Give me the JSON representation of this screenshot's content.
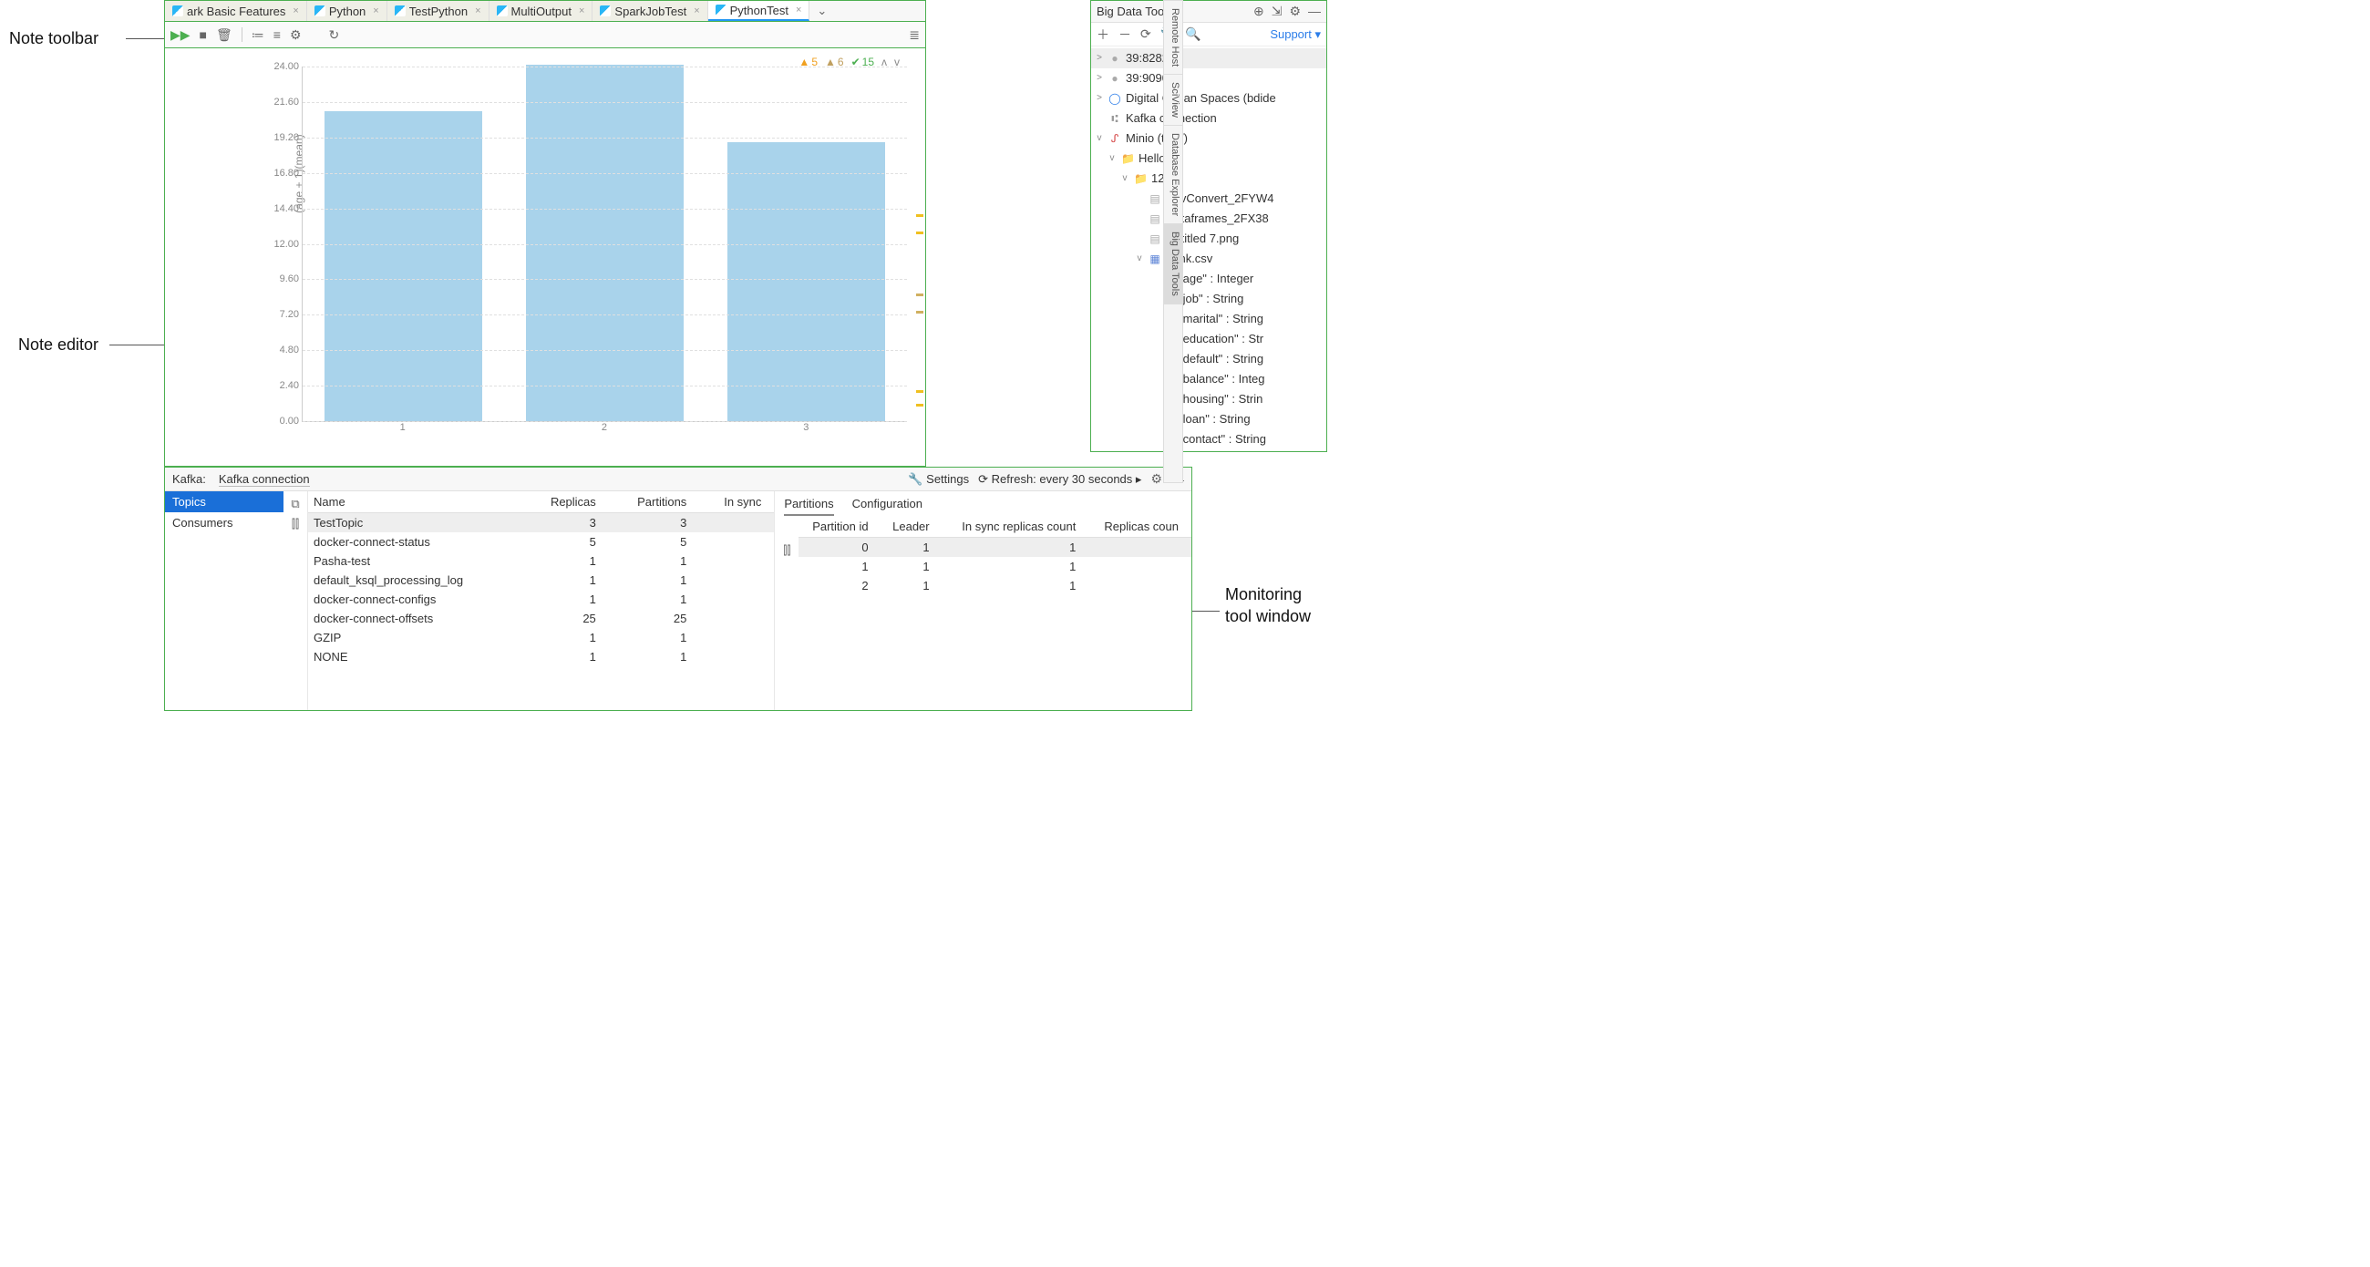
{
  "callouts": {
    "note_toolbar": "Note toolbar",
    "note_editor": "Note editor",
    "bdt1": "Big Data Tools",
    "bdt2": "tool window",
    "mon1": "Monitoring",
    "mon2": "tool window"
  },
  "tabs": {
    "items": [
      {
        "label": "ark Basic Features"
      },
      {
        "label": "Python"
      },
      {
        "label": "TestPython"
      },
      {
        "label": "MultiOutput"
      },
      {
        "label": "SparkJobTest"
      },
      {
        "label": "PythonTest"
      }
    ]
  },
  "chart": {
    "type": "bar",
    "ylabel": "(age + 1)(mean)",
    "yticks": [
      "0.00",
      "2.40",
      "4.80",
      "7.20",
      "9.60",
      "12.00",
      "14.40",
      "16.80",
      "19.20",
      "21.60",
      "24.00"
    ],
    "categories": [
      "1",
      "2",
      "3"
    ],
    "values": [
      21.0,
      24.1,
      18.9
    ],
    "ymax": 24.0,
    "bar_color": "#a9d3eb",
    "grid_color": "#e0e0e0",
    "background_color": "#ffffff",
    "status": {
      "warn": "5",
      "warn2": "6",
      "ok": "15"
    }
  },
  "bdt": {
    "title": "Big Data Tools",
    "support": "Support",
    "tree": [
      {
        "d": 0,
        "arr": ">",
        "ic": "srv",
        "g": "●",
        "label": "39:8282",
        "sel": true
      },
      {
        "d": 0,
        "arr": ">",
        "ic": "srv",
        "g": "●",
        "label": "39:9090"
      },
      {
        "d": 0,
        "arr": ">",
        "ic": "do",
        "g": "◯",
        "label": "Digital Ocean Spaces (bdide"
      },
      {
        "d": 0,
        "arr": "",
        "ic": "kf",
        "g": "⑆",
        "label": "Kafka connection"
      },
      {
        "d": 0,
        "arr": "v",
        "ic": "min",
        "g": "ᔑ",
        "label": "Minio (test/)"
      },
      {
        "d": 1,
        "arr": "v",
        "ic": "fold",
        "g": "📁",
        "label": "Hello"
      },
      {
        "d": 2,
        "arr": "v",
        "ic": "fold",
        "g": "📁",
        "label": "12"
      },
      {
        "d": 3,
        "arr": "",
        "ic": "file",
        "g": "▤",
        "label": "CsvConvert_2FYW4"
      },
      {
        "d": 3,
        "arr": "",
        "ic": "file",
        "g": "▤",
        "label": "Dataframes_2FX38"
      },
      {
        "d": 3,
        "arr": "",
        "ic": "file",
        "g": "▤",
        "label": "Untitled 7.png"
      },
      {
        "d": 3,
        "arr": "v",
        "ic": "csv",
        "g": "▦",
        "label": "bank.csv"
      },
      {
        "d": 4,
        "arr": "",
        "ic": "col",
        "g": "▥",
        "label": "\"age\" : Integer"
      },
      {
        "d": 4,
        "arr": "",
        "ic": "col",
        "g": "▥",
        "label": "\"job\" : String"
      },
      {
        "d": 4,
        "arr": "",
        "ic": "col",
        "g": "▥",
        "label": "\"marital\" : String"
      },
      {
        "d": 4,
        "arr": "",
        "ic": "col",
        "g": "▥",
        "label": "\"education\" : Str"
      },
      {
        "d": 4,
        "arr": "",
        "ic": "col",
        "g": "▥",
        "label": "\"default\" : String"
      },
      {
        "d": 4,
        "arr": "",
        "ic": "col",
        "g": "▥",
        "label": "\"balance\" : Integ"
      },
      {
        "d": 4,
        "arr": "",
        "ic": "col",
        "g": "▥",
        "label": "\"housing\" : Strin"
      },
      {
        "d": 4,
        "arr": "",
        "ic": "col",
        "g": "▥",
        "label": "\"loan\" : String"
      },
      {
        "d": 4,
        "arr": "",
        "ic": "col",
        "g": "▥",
        "label": "\"contact\" : String"
      }
    ]
  },
  "rstrip": [
    "Remote Host",
    "SciView",
    "Database Explorer",
    "Big Data Tools"
  ],
  "kafka": {
    "label": "Kafka:",
    "conn": "Kafka connection",
    "settings": "Settings",
    "refresh": "Refresh: every 30 seconds",
    "side": {
      "topics": "Topics",
      "consumers": "Consumers"
    },
    "topics": {
      "cols": [
        "Name",
        "Replicas",
        "Partitions",
        "In sync"
      ],
      "rows": [
        {
          "n": "TestTopic",
          "r": "3",
          "p": "3",
          "sel": true
        },
        {
          "n": "docker-connect-status",
          "r": "5",
          "p": "5"
        },
        {
          "n": "Pasha-test",
          "r": "1",
          "p": "1"
        },
        {
          "n": "default_ksql_processing_log",
          "r": "1",
          "p": "1"
        },
        {
          "n": "docker-connect-configs",
          "r": "1",
          "p": "1"
        },
        {
          "n": "docker-connect-offsets",
          "r": "25",
          "p": "25"
        },
        {
          "n": "GZIP",
          "r": "1",
          "p": "1"
        },
        {
          "n": "NONE",
          "r": "1",
          "p": "1"
        }
      ]
    },
    "subtabs": {
      "partitions": "Partitions",
      "config": "Configuration"
    },
    "part": {
      "cols": [
        "Partition id",
        "Leader",
        "In sync replicas count",
        "Replicas coun"
      ],
      "rows": [
        {
          "id": "0",
          "l": "1",
          "s": "1",
          "sel": true
        },
        {
          "id": "1",
          "l": "1",
          "s": "1"
        },
        {
          "id": "2",
          "l": "1",
          "s": "1"
        }
      ]
    }
  }
}
